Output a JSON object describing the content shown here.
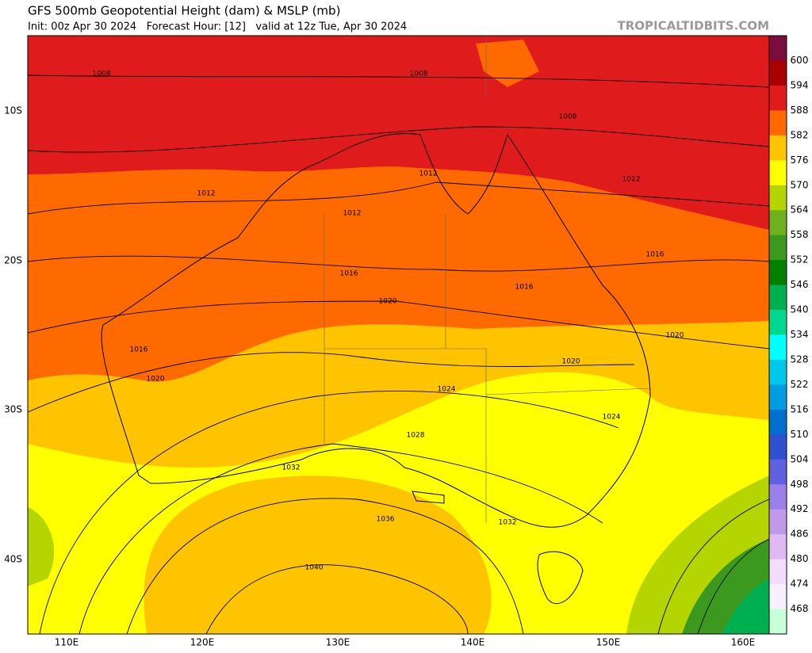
{
  "header": {
    "title": "GFS 500mb Geopotential Height (dam) & MSLP (mb)",
    "subtitle": "Init: 00z Apr 30 2024   Forecast Hour: [12]   valid at 12z Tue, Apr 30 2024",
    "site": "TROPICALTIDBITS.COM"
  },
  "map": {
    "lat_labels": [
      "10S",
      "20S",
      "30S",
      "40S"
    ],
    "lon_labels": [
      "110E",
      "120E",
      "130E",
      "140E",
      "150E",
      "160E"
    ],
    "contour_labels": [
      "1008",
      "1008",
      "1008",
      "1012",
      "1012",
      "1012",
      "1012",
      "1016",
      "1016",
      "1016",
      "1016",
      "1020",
      "1020",
      "1020",
      "1020",
      "1024",
      "1024",
      "1028",
      "1032",
      "1032",
      "1036",
      "1040"
    ]
  },
  "colorbar": {
    "labels": [
      "600",
      "594",
      "588",
      "582",
      "576",
      "570",
      "564",
      "558",
      "552",
      "546",
      "540",
      "534",
      "528",
      "522",
      "516",
      "510",
      "504",
      "498",
      "492",
      "486",
      "480",
      "474",
      "468"
    ]
  }
}
